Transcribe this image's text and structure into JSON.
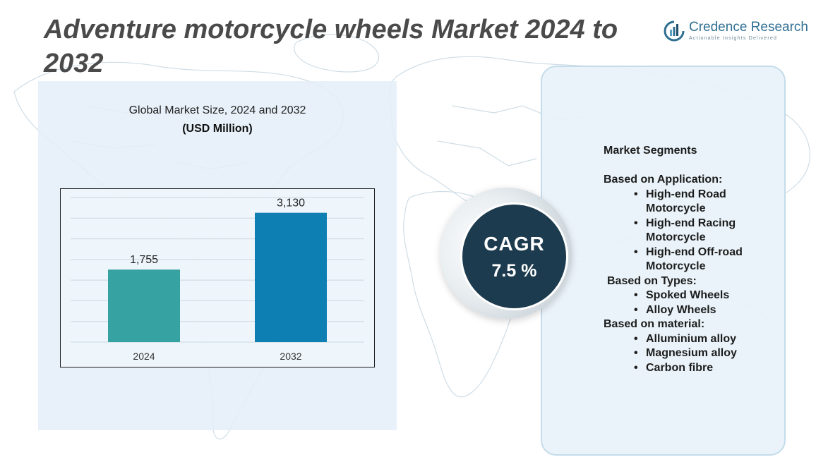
{
  "title": "Adventure motorcycle wheels Market 2024 to 2032",
  "logo": {
    "name": "Credence Research",
    "tagline": "Actionable Insights Delivered",
    "icon": "credence-logo-icon"
  },
  "chart_data": {
    "type": "bar",
    "title": "Global Market Size, 2024 and 2032",
    "subtitle": "(USD Million)",
    "categories": [
      "2024",
      "2032"
    ],
    "values": [
      1755,
      3130
    ],
    "value_labels": [
      "1,755",
      "3,130"
    ],
    "colors": [
      "#36a2a2",
      "#0d7fb2"
    ],
    "ylim": [
      0,
      3500
    ],
    "grid": true,
    "xlabel": "",
    "ylabel": ""
  },
  "cagr": {
    "label": "CAGR",
    "value": "7.5 %"
  },
  "segments": {
    "heading": "Market Segments",
    "groups": [
      {
        "label": "Based on Application:",
        "items": [
          "High-end Road Motorcycle",
          "High-end Racing Motorcycle",
          "High-end Off-road Motorcycle"
        ]
      },
      {
        "label": "Based on Types:",
        "items": [
          "Spoked Wheels",
          "Alloy Wheels"
        ]
      },
      {
        "label": "Based on material:",
        "items": [
          "Alluminium alloy",
          "Magnesium alloy",
          "Carbon fibre"
        ]
      }
    ]
  },
  "colors": {
    "title": "#4a4a4a",
    "panel_bg": "#e4eff8",
    "cagr_circle": "#1c3b4e",
    "logo": "#2f6f93"
  }
}
